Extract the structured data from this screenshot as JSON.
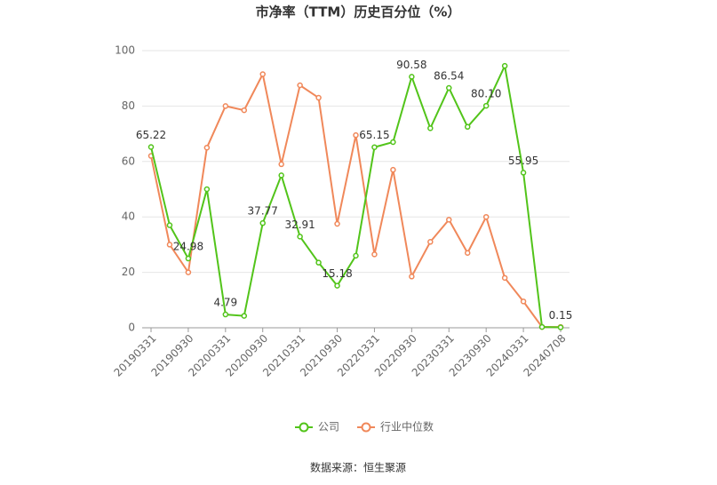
{
  "chart_data": {
    "type": "line",
    "title": "市净率（TTM）历史百分位（%）",
    "source": "数据来源：恒生聚源",
    "categories": [
      "20190331",
      null,
      "20190930",
      null,
      "20200331",
      null,
      "20200930",
      null,
      "20210331",
      null,
      "20210930",
      null,
      "20220331",
      null,
      "20220930",
      null,
      "20230331",
      null,
      "20230930",
      null,
      "20240331",
      null,
      "20240708"
    ],
    "series": [
      {
        "name": "公司",
        "color": "#52c41a",
        "values": [
          65.22,
          37,
          24.98,
          50,
          4.79,
          4.3,
          37.77,
          55,
          32.91,
          23.5,
          15.18,
          26,
          65.15,
          67,
          90.58,
          72,
          86.54,
          72.5,
          80.1,
          94.5,
          55.95,
          0.3,
          0.15
        ],
        "value_labels": [
          "65.22",
          null,
          "24.98",
          null,
          "4.79",
          null,
          "37.77",
          null,
          "32.91",
          null,
          "15.18",
          null,
          "65.15",
          null,
          "90.58",
          null,
          "86.54",
          null,
          "80.10",
          null,
          "55.95",
          null,
          "0.15"
        ]
      },
      {
        "name": "行业中位数",
        "color": "#f0885a",
        "values": [
          62,
          30,
          20,
          65,
          80,
          78.5,
          91.5,
          59,
          87.5,
          83,
          37.5,
          69.5,
          26.5,
          57,
          18.5,
          31,
          39,
          27,
          40,
          18,
          9.5,
          0.3,
          0.3
        ]
      }
    ],
    "ylim": [
      0,
      100
    ],
    "yticks": [
      0,
      20,
      40,
      60,
      80,
      100
    ],
    "grid": true,
    "legend": "bottom"
  }
}
